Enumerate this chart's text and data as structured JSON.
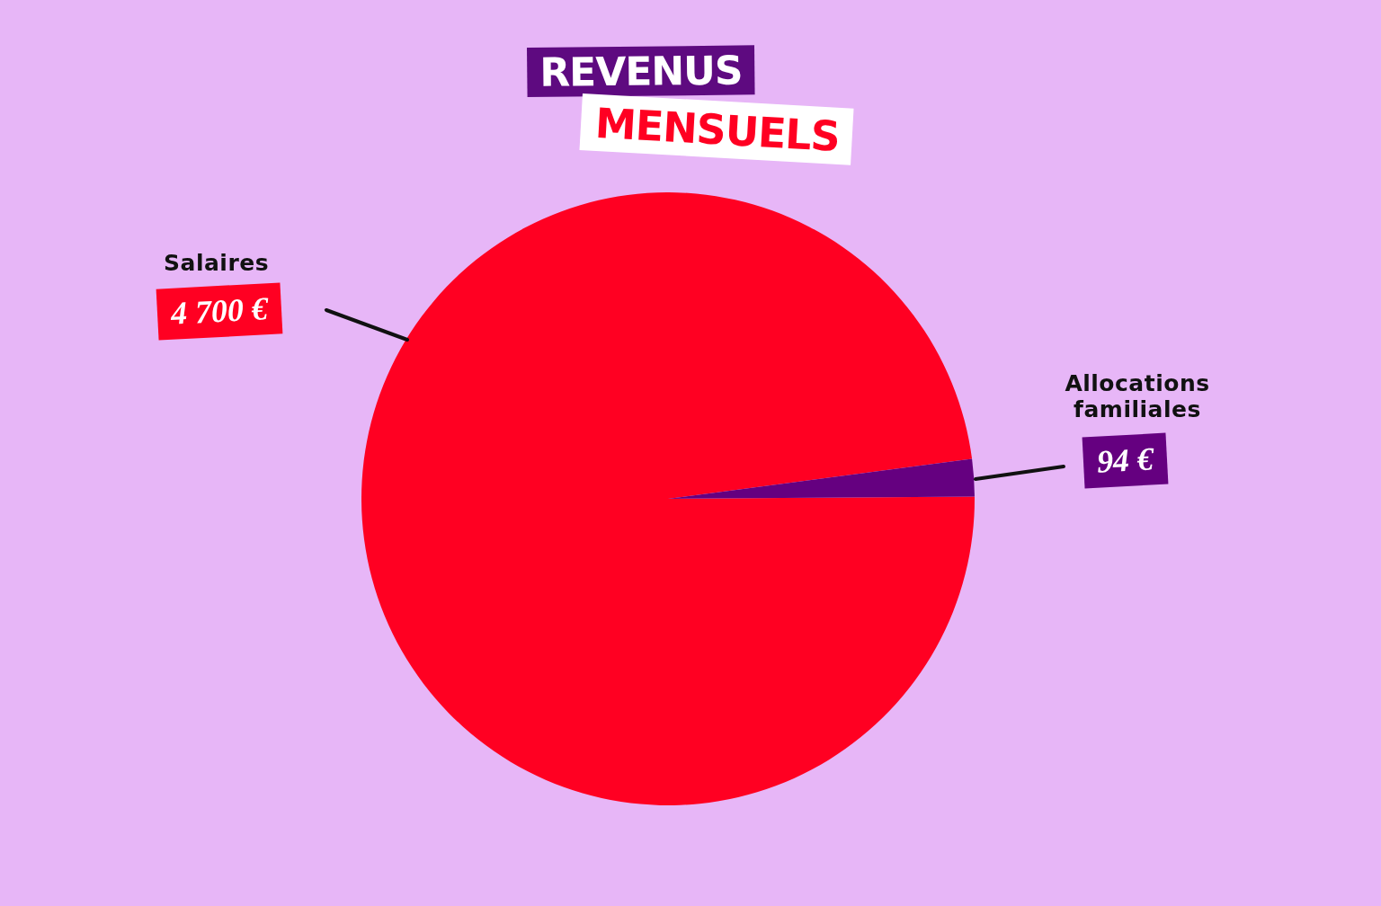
{
  "chart_data": {
    "type": "pie",
    "title": "REVENUS MENSUELS",
    "categories": [
      "Salaires",
      "Allocations familiales"
    ],
    "values": [
      4700,
      94
    ],
    "colors": [
      "#ff0022",
      "#650080"
    ],
    "value_labels": [
      "4 700 €",
      "94 €"
    ]
  }
}
